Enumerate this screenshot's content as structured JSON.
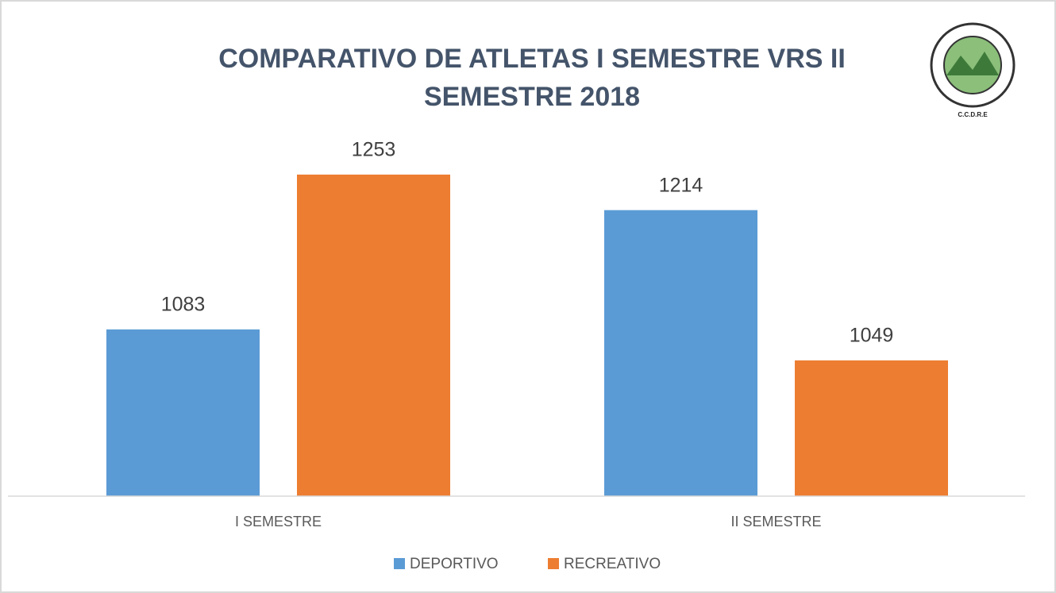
{
  "chart_data": {
    "type": "bar",
    "title": [
      "COMPARATIVO DE ATLETAS I SEMESTRE VRS II",
      "SEMESTRE 2018"
    ],
    "logo": "C.C.D.R.E",
    "categories": [
      "I SEMESTRE",
      "II SEMESTRE"
    ],
    "series": [
      {
        "name": "DEPORTIVO",
        "color": "#5b9bd5",
        "values": [
          1083,
          1214
        ]
      },
      {
        "name": "RECREATIVO",
        "color": "#ed7d31",
        "values": [
          1253,
          1049
        ]
      }
    ],
    "ylim": [
      900,
      1300
    ],
    "legend": "bottom"
  }
}
